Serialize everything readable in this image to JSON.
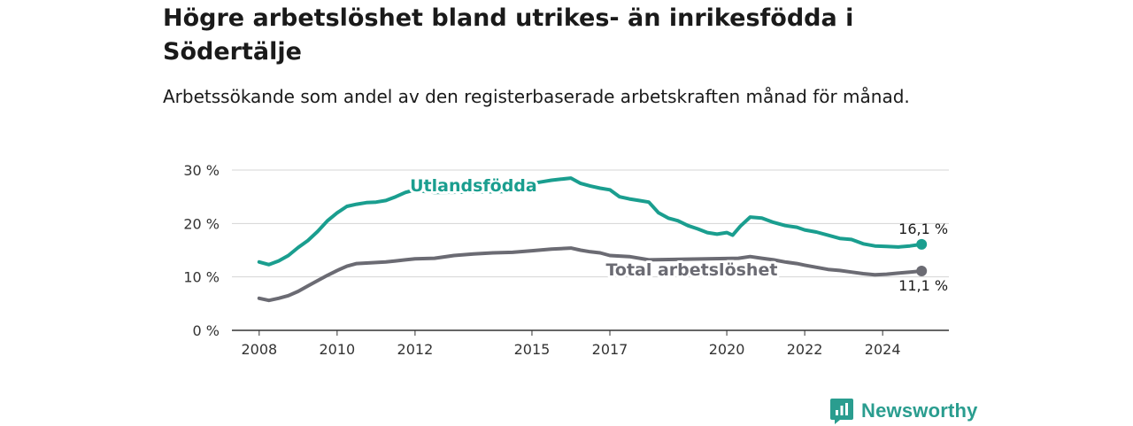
{
  "title": "Högre arbetslöshet bland utrikes- än inrikesfödda i Södertälje",
  "subtitle": "Arbetssökande som andel av den registerbaserade arbetskraften månad för månad.",
  "brand": {
    "name": "Newsworthy",
    "icon": "chart-bubble-icon",
    "color": "#2a9d8f"
  },
  "chart_data": {
    "type": "line",
    "title": "",
    "xlabel": "",
    "ylabel": "",
    "x_ticks": [
      "2008",
      "2010",
      "2012",
      "2015",
      "2017",
      "2020",
      "2022",
      "2024"
    ],
    "x_tick_positions": [
      2008,
      2010,
      2012,
      2015,
      2017,
      2020,
      2022,
      2024
    ],
    "y_ticks": [
      "0 %",
      "10 %",
      "20 %",
      "30 %"
    ],
    "y_tick_values": [
      0,
      10,
      20,
      30
    ],
    "xlim": [
      2007.3,
      2025.7
    ],
    "ylim": [
      0,
      30
    ],
    "grid": true,
    "series": [
      {
        "name": "Utlandsfödda",
        "color": "#1a9e8f",
        "end_label": "16,1 %",
        "points": [
          [
            2008.0,
            12.8
          ],
          [
            2008.25,
            12.3
          ],
          [
            2008.5,
            13.0
          ],
          [
            2008.75,
            14.0
          ],
          [
            2009.0,
            15.5
          ],
          [
            2009.25,
            16.8
          ],
          [
            2009.5,
            18.5
          ],
          [
            2009.75,
            20.5
          ],
          [
            2010.0,
            22.0
          ],
          [
            2010.25,
            23.2
          ],
          [
            2010.5,
            23.6
          ],
          [
            2010.75,
            23.9
          ],
          [
            2011.0,
            24.0
          ],
          [
            2011.25,
            24.3
          ],
          [
            2011.5,
            25.0
          ],
          [
            2011.75,
            25.8
          ],
          [
            2012.0,
            26.3
          ],
          [
            2012.25,
            26.0
          ],
          [
            2012.5,
            25.8
          ],
          [
            2014.5,
            26.0
          ],
          [
            2014.75,
            26.5
          ],
          [
            2015.0,
            27.5
          ],
          [
            2015.25,
            27.8
          ],
          [
            2015.5,
            28.1
          ],
          [
            2015.75,
            28.3
          ],
          [
            2016.0,
            28.5
          ],
          [
            2016.25,
            27.5
          ],
          [
            2016.5,
            27.0
          ],
          [
            2016.75,
            26.6
          ],
          [
            2017.0,
            26.3
          ],
          [
            2017.25,
            25.0
          ],
          [
            2017.5,
            24.6
          ],
          [
            2017.75,
            24.3
          ],
          [
            2018.0,
            24.0
          ],
          [
            2018.25,
            22.0
          ],
          [
            2018.5,
            21.0
          ],
          [
            2018.75,
            20.5
          ],
          [
            2019.0,
            19.6
          ],
          [
            2019.25,
            19.0
          ],
          [
            2019.5,
            18.3
          ],
          [
            2019.75,
            18.0
          ],
          [
            2020.0,
            18.3
          ],
          [
            2020.15,
            17.8
          ],
          [
            2020.35,
            19.5
          ],
          [
            2020.6,
            21.2
          ],
          [
            2020.9,
            21.0
          ],
          [
            2021.2,
            20.2
          ],
          [
            2021.5,
            19.6
          ],
          [
            2021.8,
            19.3
          ],
          [
            2022.0,
            18.8
          ],
          [
            2022.3,
            18.4
          ],
          [
            2022.6,
            17.8
          ],
          [
            2022.9,
            17.2
          ],
          [
            2023.2,
            17.0
          ],
          [
            2023.5,
            16.2
          ],
          [
            2023.8,
            15.8
          ],
          [
            2024.1,
            15.7
          ],
          [
            2024.4,
            15.6
          ],
          [
            2024.7,
            15.8
          ],
          [
            2025.0,
            16.1
          ]
        ]
      },
      {
        "name": "Total arbetslöshet",
        "color": "#6b6b73",
        "end_label": "11,1 %",
        "points": [
          [
            2008.0,
            6.0
          ],
          [
            2008.25,
            5.6
          ],
          [
            2008.5,
            6.0
          ],
          [
            2008.75,
            6.5
          ],
          [
            2009.0,
            7.3
          ],
          [
            2009.25,
            8.3
          ],
          [
            2009.5,
            9.3
          ],
          [
            2009.75,
            10.3
          ],
          [
            2010.0,
            11.2
          ],
          [
            2010.25,
            12.0
          ],
          [
            2010.5,
            12.5
          ],
          [
            2010.75,
            12.6
          ],
          [
            2011.0,
            12.7
          ],
          [
            2011.25,
            12.8
          ],
          [
            2011.5,
            13.0
          ],
          [
            2011.75,
            13.2
          ],
          [
            2012.0,
            13.4
          ],
          [
            2012.5,
            13.5
          ],
          [
            2013.0,
            14.0
          ],
          [
            2013.5,
            14.3
          ],
          [
            2014.0,
            14.5
          ],
          [
            2014.5,
            14.6
          ],
          [
            2015.0,
            14.9
          ],
          [
            2015.5,
            15.2
          ],
          [
            2016.0,
            15.4
          ],
          [
            2016.25,
            15.0
          ],
          [
            2016.5,
            14.7
          ],
          [
            2016.75,
            14.5
          ],
          [
            2017.0,
            14.0
          ],
          [
            2017.5,
            13.8
          ],
          [
            2018.0,
            13.2
          ],
          [
            2020.3,
            13.5
          ],
          [
            2020.6,
            13.8
          ],
          [
            2020.9,
            13.5
          ],
          [
            2021.2,
            13.2
          ],
          [
            2021.5,
            12.8
          ],
          [
            2021.8,
            12.5
          ],
          [
            2022.0,
            12.2
          ],
          [
            2022.3,
            11.8
          ],
          [
            2022.6,
            11.4
          ],
          [
            2022.9,
            11.2
          ],
          [
            2023.2,
            10.9
          ],
          [
            2023.5,
            10.6
          ],
          [
            2023.8,
            10.4
          ],
          [
            2024.1,
            10.5
          ],
          [
            2024.4,
            10.7
          ],
          [
            2024.7,
            10.9
          ],
          [
            2025.0,
            11.1
          ]
        ]
      }
    ],
    "annotations": [
      {
        "text": "Utlandsfödda",
        "series": 0,
        "x": 2013.5,
        "y": 27.0
      },
      {
        "text": "Total arbetslöshet",
        "series": 1,
        "x": 2019.1,
        "y": 11.3
      }
    ]
  }
}
